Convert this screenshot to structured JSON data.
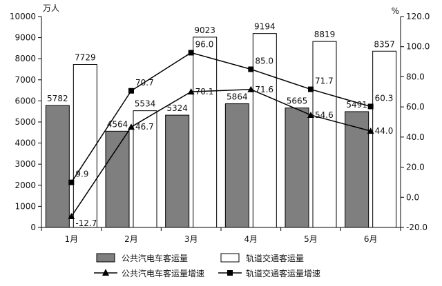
{
  "chart_data": {
    "type": "bar",
    "categories": [
      "1月",
      "2月",
      "3月",
      "4月",
      "5月",
      "6月"
    ],
    "y_left": {
      "unit": "万人",
      "min": 0,
      "max": 10000,
      "step": 1000
    },
    "y_right": {
      "unit": "%",
      "min": -20,
      "max": 120,
      "step": 20
    },
    "series": [
      {
        "name": "公共汽电车客运量",
        "type": "bar",
        "axis": "left",
        "color": "#7f7f7f",
        "values": [
          5782,
          4564,
          5324,
          5864,
          5665,
          5491
        ]
      },
      {
        "name": "轨道交通客运量",
        "type": "bar",
        "axis": "left",
        "color": "#ffffff",
        "values": [
          7729,
          5534,
          9023,
          9194,
          8819,
          8357
        ]
      },
      {
        "name": "公共汽电车客运量增速",
        "type": "line",
        "marker": "triangle",
        "axis": "right",
        "color": "#000000",
        "values": [
          -12.7,
          46.7,
          70.1,
          71.6,
          54.6,
          44.0
        ]
      },
      {
        "name": "轨道交通客运量增速",
        "type": "line",
        "marker": "square",
        "axis": "right",
        "color": "#000000",
        "values": [
          9.9,
          70.7,
          96.0,
          85.0,
          71.7,
          60.3
        ]
      }
    ],
    "bar_value_labels": [
      [
        "5782",
        "4564",
        "5324",
        "5864",
        "5665",
        "5491"
      ],
      [
        "7729",
        "5534",
        "9023",
        "9194",
        "8819",
        "8357"
      ]
    ],
    "line_value_labels": [
      [
        "-12.7",
        "46.7",
        "70.1",
        "71.6",
        "54.6",
        "44.0"
      ],
      [
        "9.9",
        "70.7",
        "96.0",
        "85.0",
        "71.7",
        "60.3"
      ]
    ],
    "y_left_tick_labels": [
      "0",
      "1000",
      "2000",
      "3000",
      "4000",
      "5000",
      "6000",
      "7000",
      "8000",
      "9000",
      "10000"
    ],
    "y_right_tick_labels": [
      "-20.0",
      "0.0",
      "20.0",
      "40.0",
      "60.0",
      "80.0",
      "100.0",
      "120.0"
    ],
    "legend": {
      "position": "bottom",
      "items": [
        "公共汽电车客运量",
        "轨道交通客运量",
        "公共汽电车客运量增速",
        "轨道交通客运量增速"
      ]
    },
    "grid": false
  }
}
